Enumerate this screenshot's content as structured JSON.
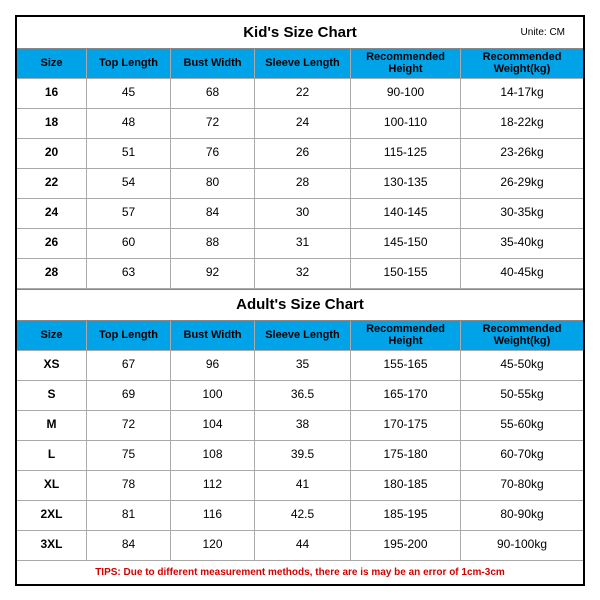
{
  "unit_label": "Unite: CM",
  "kids": {
    "title": "Kid's Size Chart",
    "columns": [
      "Size",
      "Top Length",
      "Bust Width",
      "Sleeve Length",
      "Recommended Height",
      "Recommended Weight(kg)"
    ],
    "rows": [
      [
        "16",
        "45",
        "68",
        "22",
        "90-100",
        "14-17kg"
      ],
      [
        "18",
        "48",
        "72",
        "24",
        "100-110",
        "18-22kg"
      ],
      [
        "20",
        "51",
        "76",
        "26",
        "115-125",
        "23-26kg"
      ],
      [
        "22",
        "54",
        "80",
        "28",
        "130-135",
        "26-29kg"
      ],
      [
        "24",
        "57",
        "84",
        "30",
        "140-145",
        "30-35kg"
      ],
      [
        "26",
        "60",
        "88",
        "31",
        "145-150",
        "35-40kg"
      ],
      [
        "28",
        "63",
        "92",
        "32",
        "150-155",
        "40-45kg"
      ]
    ]
  },
  "adults": {
    "title": "Adult's Size Chart",
    "columns": [
      "Size",
      "Top Length",
      "Bust Width",
      "Sleeve Length",
      "Recommended Height",
      "Recommended Weight(kg)"
    ],
    "rows": [
      [
        "XS",
        "67",
        "96",
        "35",
        "155-165",
        "45-50kg"
      ],
      [
        "S",
        "69",
        "100",
        "36.5",
        "165-170",
        "50-55kg"
      ],
      [
        "M",
        "72",
        "104",
        "38",
        "170-175",
        "55-60kg"
      ],
      [
        "L",
        "75",
        "108",
        "39.5",
        "175-180",
        "60-70kg"
      ],
      [
        "XL",
        "78",
        "112",
        "41",
        "180-185",
        "70-80kg"
      ],
      [
        "2XL",
        "81",
        "116",
        "42.5",
        "185-195",
        "80-90kg"
      ],
      [
        "3XL",
        "84",
        "120",
        "44",
        "195-200",
        "90-100kg"
      ]
    ]
  },
  "tips": "TIPS: Due to different measurement methods, there are is may be an error of 1cm-3cm"
}
